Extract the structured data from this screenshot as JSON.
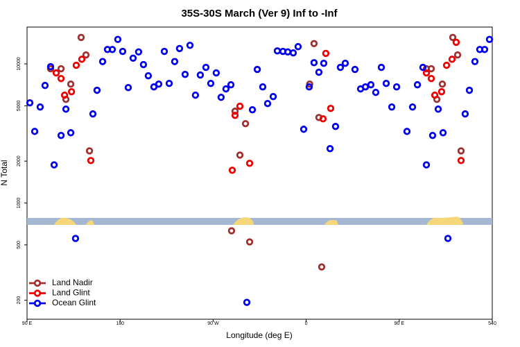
{
  "chart_data": {
    "type": "scatter",
    "title": "35S-30S March (Ver 9)   Inf to -Inf",
    "xlabel": "Longitude (deg E)",
    "ylabel": "N Total",
    "yscale": "log",
    "legend": "lower left",
    "xlim": [
      90,
      540
    ],
    "ylim": [
      146,
      18400
    ],
    "xticks": [
      {
        "value": 90,
        "label": "90 E"
      },
      180,
      {
        "value": 270,
        "label": "90 W"
      },
      {
        "value": 360,
        "label": "0"
      },
      {
        "value": 450,
        "label": "90 E"
      },
      540
    ],
    "yticks": [
      200,
      500,
      1000,
      2000,
      5000,
      10000
    ],
    "series": [
      {
        "name": "Land Nadir",
        "color": "#a03030",
        "x": [
          112.8,
          122.9,
          127.6,
          132.3,
          142.3,
          147.0,
          150.4,
          287.8,
          291.2,
          295.9,
          301.3,
          305.3,
          363.4,
          367.6,
          372.3,
          375.0,
          476.3,
          481.0,
          486.4,
          491.7,
          501.8,
          506.5,
          509.8
        ],
        "values": [
          9230,
          9230,
          5560,
          7160,
          15500,
          11600,
          2370,
          631,
          4570,
          2210,
          3720,
          525,
          7160,
          14000,
          4120,
          347,
          9230,
          9230,
          5560,
          7160,
          15500,
          11600,
          2370
        ]
      },
      {
        "name": "Land Glint",
        "color": "#ee0000",
        "x": [
          118.2,
          122.9,
          126.3,
          133.0,
          137.6,
          143.0,
          151.7,
          288.5,
          291.2,
          295.9,
          305.3,
          376.3,
          379.0,
          383.7,
          476.3,
          481.0,
          484.4,
          491.0,
          495.8,
          501.1,
          509.8,
          505.1
        ],
        "values": [
          8610,
          7850,
          5960,
          6310,
          9770,
          10800,
          2020,
          1720,
          4270,
          4960,
          1930,
          4030,
          11900,
          4790,
          8610,
          7850,
          5960,
          6310,
          9770,
          10800,
          2020,
          14300
        ]
      },
      {
        "name": "Ocean Glint",
        "color": "#0000ee",
        "x": [
          92.7,
          97.4,
          102.7,
          107.4,
          112.8,
          116.2,
          122.9,
          127.6,
          132.3,
          136.9,
          153.7,
          157.7,
          163.1,
          167.8,
          172.5,
          177.8,
          182.5,
          187.9,
          192.6,
          197.9,
          202.6,
          207.3,
          212.7,
          217.4,
          222.8,
          227.5,
          232.8,
          237.5,
          242.9,
          247.6,
          252.9,
          257.6,
          263.0,
          267.7,
          273.0,
          277.7,
          282.4,
          287.2,
          308.0,
          312.7,
          318.0,
          322.7,
          328.1,
          332.1,
          337.5,
          342.2,
          347.5,
          352.2,
          357.6,
          362.9,
          367.6,
          372.3,
          377.0,
          383.1,
          388.4,
          393.1,
          397.8,
          407.2,
          412.6,
          417.3,
          422.6,
          427.3,
          432.7,
          437.4,
          442.8,
          447.5,
          457.5,
          462.9,
          467.6,
          472.9,
          476.3,
          482.3,
          487.7,
          492.4,
          497.1,
          513.8,
          517.9,
          523.2,
          527.9,
          532.6,
          537.3,
          302.6
        ],
        "values": [
          5250,
          3270,
          4900,
          7000,
          9550,
          1880,
          3060,
          4730,
          3200,
          556,
          4370,
          6460,
          10400,
          12700,
          12700,
          15000,
          12300,
          6760,
          11000,
          12200,
          9890,
          8220,
          6840,
          7160,
          12300,
          7240,
          10400,
          12900,
          8410,
          13600,
          5960,
          8320,
          9440,
          7240,
          8610,
          5750,
          6610,
          7080,
          4680,
          9120,
          6840,
          5190,
          5820,
          12400,
          12300,
          12200,
          12000,
          13300,
          3390,
          6840,
          10200,
          8710,
          10100,
          2460,
          3550,
          9440,
          10100,
          9120,
          6610,
          6840,
          7080,
          6240,
          9440,
          7240,
          4900,
          6840,
          3270,
          4900,
          7080,
          9440,
          1880,
          3060,
          4730,
          3200,
          556,
          4370,
          6460,
          10400,
          12700,
          12700,
          15000,
          193
        ]
      }
    ]
  }
}
